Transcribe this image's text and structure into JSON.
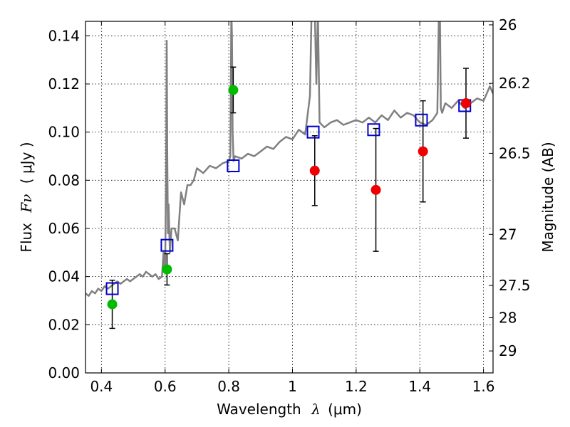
{
  "colors": {
    "spectrum": "#808080",
    "model": "#0000cc",
    "hst": "#00bb00",
    "ir": "#ee0000",
    "errorbar": "#000000"
  },
  "chart_data": {
    "type": "scatter",
    "xlabel_prefix": "Wavelength",
    "xlabel_symbol": "λ",
    "xlabel_unit": "(μm)",
    "ylabel_prefix": "Flux",
    "ylabel_symbol": "Fν",
    "ylabel_unit": "( μJy )",
    "y2label": "Magnitude (AB)",
    "xlim": [
      0.35,
      1.63
    ],
    "ylim": [
      0.0,
      0.146
    ],
    "x_ticks": [
      0.4,
      0.6,
      0.8,
      1.0,
      1.2,
      1.4,
      1.6
    ],
    "x_tick_labels": [
      "0.4",
      "0.6",
      "0.8",
      "1",
      "1.2",
      "1.4",
      "1.6"
    ],
    "y_ticks": [
      0.0,
      0.02,
      0.04,
      0.06,
      0.08,
      0.1,
      0.12,
      0.14
    ],
    "y_tick_labels": [
      "0.00",
      "0.02",
      "0.04",
      "0.06",
      "0.08",
      "0.10",
      "0.12",
      "0.14"
    ],
    "y2_ticks": [
      {
        "mag": 26.0,
        "label": "26"
      },
      {
        "mag": 26.2,
        "label": "26.2"
      },
      {
        "mag": 26.5,
        "label": "26.5"
      },
      {
        "mag": 27.0,
        "label": "27"
      },
      {
        "mag": 27.5,
        "label": "27.5"
      },
      {
        "mag": 28.0,
        "label": "28"
      },
      {
        "mag": 29.0,
        "label": "29"
      }
    ],
    "grid": true,
    "series": [
      {
        "name": "spectrum",
        "kind": "line",
        "x": [
          0.35,
          0.36,
          0.37,
          0.38,
          0.39,
          0.4,
          0.41,
          0.42,
          0.43,
          0.44,
          0.45,
          0.46,
          0.47,
          0.48,
          0.49,
          0.5,
          0.51,
          0.52,
          0.53,
          0.54,
          0.55,
          0.56,
          0.57,
          0.58,
          0.59,
          0.595,
          0.6,
          0.603,
          0.605,
          0.607,
          0.609,
          0.611,
          0.615,
          0.62,
          0.63,
          0.64,
          0.645,
          0.65,
          0.66,
          0.67,
          0.68,
          0.69,
          0.7,
          0.72,
          0.74,
          0.76,
          0.78,
          0.8,
          0.805,
          0.808,
          0.81,
          0.812,
          0.815,
          0.82,
          0.84,
          0.86,
          0.88,
          0.9,
          0.92,
          0.94,
          0.96,
          0.98,
          1.0,
          1.02,
          1.04,
          1.055,
          1.06,
          1.063,
          1.066,
          1.07,
          1.075,
          1.08,
          1.085,
          1.1,
          1.12,
          1.14,
          1.16,
          1.18,
          1.2,
          1.22,
          1.24,
          1.26,
          1.28,
          1.3,
          1.32,
          1.34,
          1.36,
          1.38,
          1.4,
          1.42,
          1.44,
          1.455,
          1.46,
          1.463,
          1.466,
          1.47,
          1.48,
          1.5,
          1.52,
          1.54,
          1.56,
          1.58,
          1.6,
          1.62,
          1.63
        ],
        "y": [
          0.033,
          0.032,
          0.034,
          0.033,
          0.035,
          0.034,
          0.036,
          0.035,
          0.036,
          0.037,
          0.038,
          0.037,
          0.038,
          0.039,
          0.038,
          0.039,
          0.04,
          0.041,
          0.04,
          0.042,
          0.041,
          0.04,
          0.041,
          0.039,
          0.04,
          0.05,
          0.042,
          0.08,
          0.138,
          0.09,
          0.058,
          0.07,
          0.05,
          0.06,
          0.06,
          0.055,
          0.065,
          0.075,
          0.07,
          0.078,
          0.078,
          0.08,
          0.085,
          0.083,
          0.086,
          0.085,
          0.087,
          0.088,
          0.09,
          0.15,
          0.14,
          0.1,
          0.088,
          0.09,
          0.089,
          0.091,
          0.09,
          0.092,
          0.094,
          0.093,
          0.096,
          0.098,
          0.097,
          0.101,
          0.099,
          0.115,
          0.15,
          0.15,
          0.15,
          0.15,
          0.12,
          0.15,
          0.104,
          0.102,
          0.104,
          0.105,
          0.103,
          0.104,
          0.105,
          0.104,
          0.106,
          0.104,
          0.107,
          0.105,
          0.109,
          0.106,
          0.108,
          0.107,
          0.104,
          0.103,
          0.105,
          0.108,
          0.15,
          0.15,
          0.11,
          0.108,
          0.112,
          0.11,
          0.113,
          0.11,
          0.112,
          0.114,
          0.113,
          0.119,
          0.116
        ]
      },
      {
        "name": "model photometry",
        "kind": "square",
        "x": [
          0.434,
          0.606,
          0.814,
          1.065,
          1.255,
          1.405,
          1.541
        ],
        "y": [
          0.035,
          0.053,
          0.086,
          0.1,
          0.101,
          0.105,
          0.111
        ]
      },
      {
        "name": "HST photometry",
        "kind": "circle",
        "x": [
          0.434,
          0.606,
          0.814
        ],
        "y": [
          0.0285,
          0.043,
          0.1175
        ],
        "yerr": [
          0.01,
          0.0065,
          0.0095
        ]
      },
      {
        "name": "near-IR photometry",
        "kind": "circle",
        "x": [
          1.07,
          1.262,
          1.41,
          1.545
        ],
        "y": [
          0.084,
          0.076,
          0.092,
          0.112
        ],
        "yerr": [
          0.0145,
          0.0255,
          0.021,
          0.0145
        ]
      }
    ]
  }
}
